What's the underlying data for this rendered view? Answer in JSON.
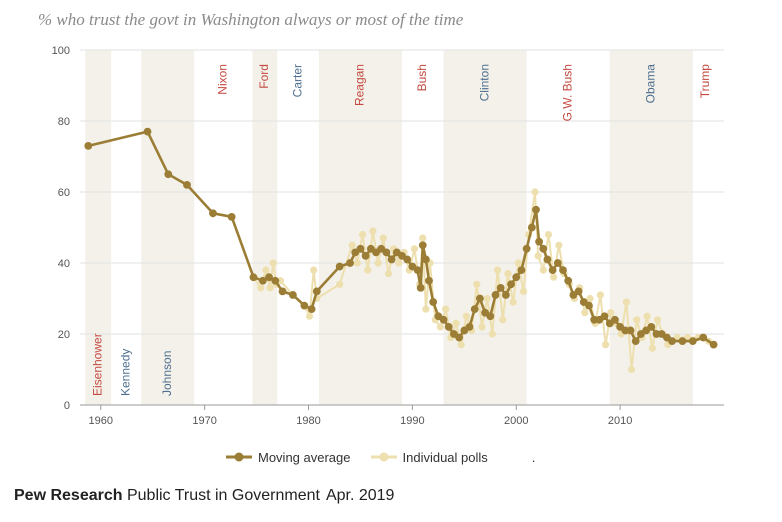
{
  "chart_data": {
    "type": "line",
    "title": "% who trust the govt in Washington always or most of the time",
    "xlim": [
      1958,
      2020
    ],
    "ylim": [
      0,
      100
    ],
    "x_ticks": [
      1960,
      1970,
      1980,
      1990,
      2000,
      2010
    ],
    "y_ticks": [
      0,
      20,
      40,
      60,
      80,
      100
    ],
    "grid": true,
    "legend_placement": "bottom",
    "colors": {
      "moving_average": "#9b7d35",
      "individual_polls": "#eedfae",
      "band": "#f3f1ea",
      "republican": "#c44a41",
      "democrat": "#4e6f8e"
    },
    "presidents": [
      {
        "name": "Eisenhower",
        "start": 1958.5,
        "end": 1961,
        "party": "R",
        "shaded": true,
        "label_pos": "bottom"
      },
      {
        "name": "Kennedy",
        "start": 1961,
        "end": 1963.9,
        "party": "D",
        "shaded": false,
        "label_pos": "bottom"
      },
      {
        "name": "Johnson",
        "start": 1963.9,
        "end": 1969,
        "party": "D",
        "shaded": true,
        "label_pos": "bottom"
      },
      {
        "name": "Nixon",
        "start": 1969,
        "end": 1974.6,
        "party": "R",
        "shaded": false,
        "label_pos": "top"
      },
      {
        "name": "Ford",
        "start": 1974.6,
        "end": 1977,
        "party": "R",
        "shaded": true,
        "label_pos": "top"
      },
      {
        "name": "Carter",
        "start": 1977,
        "end": 1981,
        "party": "D",
        "shaded": false,
        "label_pos": "top"
      },
      {
        "name": "Reagan",
        "start": 1981,
        "end": 1989,
        "party": "R",
        "shaded": true,
        "label_pos": "top"
      },
      {
        "name": "Bush",
        "start": 1989,
        "end": 1993,
        "party": "R",
        "shaded": false,
        "label_pos": "top"
      },
      {
        "name": "Clinton",
        "start": 1993,
        "end": 2001,
        "party": "D",
        "shaded": true,
        "label_pos": "top"
      },
      {
        "name": "G.W. Bush",
        "start": 2001,
        "end": 2009,
        "party": "R",
        "shaded": false,
        "label_pos": "top"
      },
      {
        "name": "Obama",
        "start": 2009,
        "end": 2017,
        "party": "D",
        "shaded": true,
        "label_pos": "top"
      },
      {
        "name": "Trump",
        "start": 2017,
        "end": 2019.5,
        "party": "R",
        "shaded": false,
        "label_pos": "top"
      }
    ],
    "series": [
      {
        "name": "Moving average",
        "x": [
          1958.8,
          1964.5,
          1966.5,
          1968.3,
          1970.8,
          1972.6,
          1974.7,
          1975.6,
          1976.2,
          1976.8,
          1977.5,
          1978.5,
          1979.6,
          1980.3,
          1980.8,
          1983,
          1984,
          1984.5,
          1985,
          1985.5,
          1986,
          1986.5,
          1987,
          1987.5,
          1988,
          1988.5,
          1989,
          1989.5,
          1990,
          1990.5,
          1990.8,
          1991,
          1991.3,
          1991.6,
          1992,
          1992.5,
          1993,
          1993.5,
          1994,
          1994.5,
          1995,
          1995.5,
          1996,
          1996.5,
          1997,
          1997.5,
          1998,
          1998.5,
          1999,
          1999.5,
          2000,
          2000.5,
          2001,
          2001.5,
          2001.9,
          2002.2,
          2002.6,
          2003,
          2003.5,
          2004,
          2004.5,
          2005,
          2005.5,
          2006,
          2006.5,
          2007,
          2007.5,
          2008,
          2008.5,
          2009,
          2009.5,
          2010,
          2010.5,
          2011,
          2011.5,
          2012,
          2012.5,
          2013,
          2013.5,
          2014,
          2014.5,
          2015,
          2016,
          2017,
          2018,
          2019
        ],
        "y": [
          73,
          77,
          65,
          62,
          54,
          53,
          36,
          35,
          36,
          35,
          32,
          31,
          28,
          27,
          32,
          39,
          40,
          43,
          44,
          42,
          44,
          43,
          44,
          43,
          41,
          43,
          42,
          41,
          39,
          38,
          33,
          45,
          41,
          35,
          29,
          25,
          24,
          22,
          20,
          19,
          21,
          22,
          27,
          30,
          26,
          25,
          31,
          33,
          31,
          34,
          36,
          38,
          44,
          50,
          55,
          46,
          44,
          41,
          38,
          40,
          38,
          35,
          31,
          32,
          29,
          28,
          24,
          24,
          25,
          23,
          24,
          22,
          21,
          21,
          18,
          20,
          21,
          22,
          20,
          20,
          19,
          18,
          18,
          18,
          19,
          17
        ]
      },
      {
        "name": "Individual polls",
        "x": [
          1958.8,
          1964.5,
          1966.5,
          1968.3,
          1970.8,
          1972.6,
          1974.7,
          1975.4,
          1975.9,
          1976.3,
          1976.6,
          1976.9,
          1977.3,
          1978.5,
          1979.6,
          1980.1,
          1980.5,
          1980.8,
          1983,
          1984.2,
          1984.7,
          1985.2,
          1985.7,
          1986.2,
          1986.7,
          1987.2,
          1987.7,
          1988.2,
          1988.7,
          1989.2,
          1989.7,
          1990.2,
          1990.7,
          1991,
          1991.3,
          1991.7,
          1992.2,
          1992.7,
          1993.2,
          1993.7,
          1994.2,
          1994.7,
          1995.2,
          1995.7,
          1996.2,
          1996.7,
          1997.2,
          1997.7,
          1998.2,
          1998.7,
          1999.2,
          1999.7,
          2000.2,
          2000.7,
          2001.2,
          2001.8,
          2002.1,
          2002.6,
          2003.1,
          2003.6,
          2004.1,
          2004.6,
          2005.1,
          2005.6,
          2006.1,
          2006.6,
          2007.1,
          2007.6,
          2008.1,
          2008.6,
          2009.1,
          2009.6,
          2010.1,
          2010.6,
          2011.1,
          2011.6,
          2012.1,
          2012.6,
          2013.1,
          2013.6,
          2014.1,
          2014.6,
          2015.5,
          2016.5,
          2017.5,
          2018.5,
          2019
        ],
        "y": [
          73,
          77,
          65,
          62,
          54,
          53,
          36,
          33,
          38,
          33,
          40,
          34,
          35,
          31,
          28,
          25,
          38,
          30,
          34,
          45,
          40,
          48,
          38,
          49,
          40,
          47,
          37,
          44,
          40,
          43,
          38,
          44,
          34,
          47,
          27,
          40,
          24,
          22,
          27,
          19,
          23,
          17,
          25,
          21,
          34,
          22,
          30,
          20,
          38,
          24,
          37,
          29,
          40,
          32,
          48,
          60,
          42,
          38,
          48,
          36,
          45,
          37,
          34,
          30,
          33,
          26,
          30,
          23,
          31,
          17,
          26,
          23,
          20,
          29,
          10,
          24,
          19,
          25,
          16,
          24,
          20,
          17,
          19,
          19,
          19,
          18,
          17
        ]
      }
    ]
  },
  "legend": {
    "moving_average": "Moving average",
    "individual_polls": "Individual polls",
    "trailing": "."
  },
  "source": {
    "org": "Pew Research",
    "text": "Public Trust in Government",
    "date": "Apr. 2019"
  }
}
